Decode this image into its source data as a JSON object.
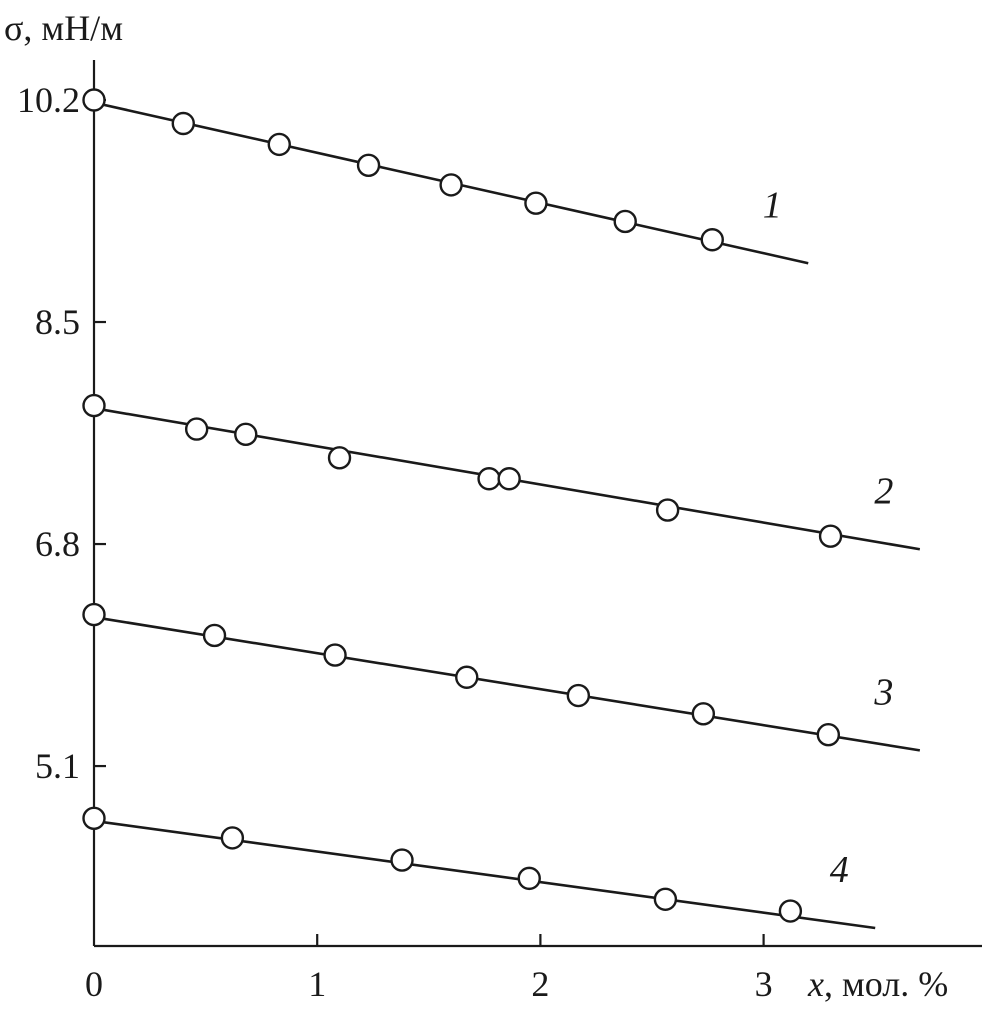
{
  "chart_data": {
    "type": "scatter",
    "ylabel": "σ, мН/м",
    "xlabel": "x, мол. %",
    "xlim": [
      0,
      3.95
    ],
    "ylim": [
      3.7,
      10.85
    ],
    "xticks": [
      0,
      1,
      2,
      3
    ],
    "xtick_labels": [
      "0",
      "1",
      "2",
      "3"
    ],
    "yticks": [
      10.2,
      8.5,
      6.8,
      5.1
    ],
    "ytick_labels": [
      "10.2",
      "8.5",
      "6.8",
      "5.1"
    ],
    "grid": false,
    "series": [
      {
        "name": "1",
        "x": [
          0,
          0.4,
          0.83,
          1.23,
          1.6,
          1.98,
          2.38,
          2.77
        ],
        "y": [
          10.2,
          10.02,
          9.86,
          9.7,
          9.55,
          9.41,
          9.27,
          9.13
        ],
        "fit": {
          "x": [
            0,
            3.2
          ],
          "y": [
            10.18,
            8.95
          ]
        }
      },
      {
        "name": "2",
        "x": [
          0,
          0.46,
          0.68,
          1.1,
          1.77,
          1.86,
          2.57,
          3.3
        ],
        "y": [
          7.86,
          7.68,
          7.64,
          7.46,
          7.3,
          7.3,
          7.06,
          6.86
        ],
        "fit": {
          "x": [
            0,
            3.7
          ],
          "y": [
            7.84,
            6.76
          ]
        }
      },
      {
        "name": "3",
        "x": [
          0,
          0.54,
          1.08,
          1.67,
          2.17,
          2.73,
          3.29
        ],
        "y": [
          6.26,
          6.1,
          5.95,
          5.78,
          5.64,
          5.5,
          5.34
        ],
        "fit": {
          "x": [
            0,
            3.7
          ],
          "y": [
            6.24,
            5.22
          ]
        }
      },
      {
        "name": "4",
        "x": [
          0,
          0.62,
          1.38,
          1.95,
          2.56,
          3.12
        ],
        "y": [
          4.7,
          4.55,
          4.38,
          4.24,
          4.08,
          3.99
        ],
        "fit": {
          "x": [
            0,
            3.5
          ],
          "y": [
            4.68,
            3.86
          ]
        }
      }
    ]
  }
}
